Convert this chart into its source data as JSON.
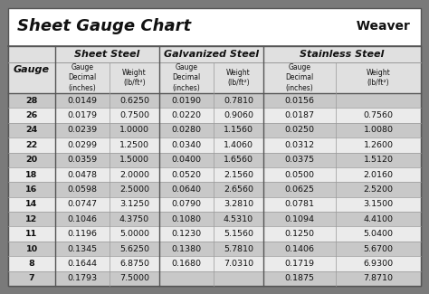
{
  "title": "Sheet Gauge Chart",
  "bg_outer": "#7a7a7a",
  "bg_white": "#ffffff",
  "bg_header_row": "#e0e0e0",
  "bg_row_dark": "#c8c8c8",
  "bg_row_light": "#ebebeb",
  "header1": "Sheet Steel",
  "header2": "Galvanized Steel",
  "header3": "Stainless Steel",
  "gauges": [
    28,
    26,
    24,
    22,
    20,
    18,
    16,
    14,
    12,
    11,
    10,
    8,
    7
  ],
  "sheet_steel": [
    [
      "0.0149",
      "0.6250"
    ],
    [
      "0.0179",
      "0.7500"
    ],
    [
      "0.0239",
      "1.0000"
    ],
    [
      "0.0299",
      "1.2500"
    ],
    [
      "0.0359",
      "1.5000"
    ],
    [
      "0.0478",
      "2.0000"
    ],
    [
      "0.0598",
      "2.5000"
    ],
    [
      "0.0747",
      "3.1250"
    ],
    [
      "0.1046",
      "4.3750"
    ],
    [
      "0.1196",
      "5.0000"
    ],
    [
      "0.1345",
      "5.6250"
    ],
    [
      "0.1644",
      "6.8750"
    ],
    [
      "0.1793",
      "7.5000"
    ]
  ],
  "galv_steel": [
    [
      "0.0190",
      "0.7810"
    ],
    [
      "0.0220",
      "0.9060"
    ],
    [
      "0.0280",
      "1.1560"
    ],
    [
      "0.0340",
      "1.4060"
    ],
    [
      "0.0400",
      "1.6560"
    ],
    [
      "0.0520",
      "2.1560"
    ],
    [
      "0.0640",
      "2.6560"
    ],
    [
      "0.0790",
      "3.2810"
    ],
    [
      "0.1080",
      "4.5310"
    ],
    [
      "0.1230",
      "5.1560"
    ],
    [
      "0.1380",
      "5.7810"
    ],
    [
      "0.1680",
      "7.0310"
    ],
    [
      "",
      ""
    ]
  ],
  "stainless_steel": [
    [
      "0.0156",
      ""
    ],
    [
      "0.0187",
      "0.7560"
    ],
    [
      "0.0250",
      "1.0080"
    ],
    [
      "0.0312",
      "1.2600"
    ],
    [
      "0.0375",
      "1.5120"
    ],
    [
      "0.0500",
      "2.0160"
    ],
    [
      "0.0625",
      "2.5200"
    ],
    [
      "0.0781",
      "3.1500"
    ],
    [
      "0.1094",
      "4.4100"
    ],
    [
      "0.1250",
      "5.0400"
    ],
    [
      "0.1406",
      "5.6700"
    ],
    [
      "0.1719",
      "6.9300"
    ],
    [
      "0.1875",
      "7.8710"
    ]
  ],
  "line_color": "#999999",
  "border_color": "#555555",
  "thick_line_color": "#555555"
}
